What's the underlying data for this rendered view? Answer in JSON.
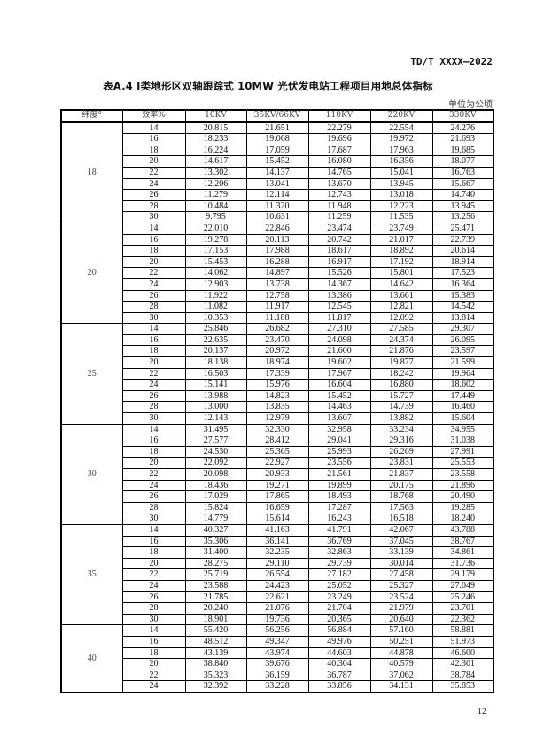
{
  "header": {
    "doc_code": "TD/T XXXX—2022"
  },
  "title": "表A.4  Ⅰ类地形区双轴跟踪式 10MW 光伏发电站工程项目用地总体指标",
  "unit": "单位为公顷",
  "table": {
    "columns": [
      "纬度°",
      "效率%",
      "10KV",
      "35KV/66KV",
      "110KV",
      "220KV",
      "330KV"
    ],
    "groups": [
      {
        "latitude": "18",
        "rows": [
          [
            "14",
            "20.815",
            "21.651",
            "22.279",
            "22.554",
            "24.276"
          ],
          [
            "16",
            "18.233",
            "19.068",
            "19.696",
            "19.972",
            "21.693"
          ],
          [
            "18",
            "16.224",
            "17.059",
            "17.687",
            "17.963",
            "19.685"
          ],
          [
            "20",
            "14.617",
            "15.452",
            "16.080",
            "16.356",
            "18.077"
          ],
          [
            "22",
            "13.302",
            "14.137",
            "14.765",
            "15.041",
            "16.763"
          ],
          [
            "24",
            "12.206",
            "13.041",
            "13.670",
            "13.945",
            "15.667"
          ],
          [
            "26",
            "11.279",
            "12.114",
            "12.743",
            "13.018",
            "14.740"
          ],
          [
            "28",
            "10.484",
            "11.320",
            "11.948",
            "12.223",
            "13.945"
          ],
          [
            "30",
            "9.795",
            "10.631",
            "11.259",
            "11.535",
            "13.256"
          ]
        ]
      },
      {
        "latitude": "20",
        "rows": [
          [
            "14",
            "22.010",
            "22.846",
            "23.474",
            "23.749",
            "25.471"
          ],
          [
            "16",
            "19.278",
            "20.113",
            "20.742",
            "21.017",
            "22.739"
          ],
          [
            "18",
            "17.153",
            "17.988",
            "18.617",
            "18.892",
            "20.614"
          ],
          [
            "20",
            "15.453",
            "16.288",
            "16.917",
            "17.192",
            "18.914"
          ],
          [
            "22",
            "14.062",
            "14.897",
            "15.526",
            "15.801",
            "17.523"
          ],
          [
            "24",
            "12.903",
            "13.738",
            "14.367",
            "14.642",
            "16.364"
          ],
          [
            "26",
            "11.922",
            "12.758",
            "13.386",
            "13.661",
            "15.383"
          ],
          [
            "28",
            "11.082",
            "11.917",
            "12.545",
            "12.821",
            "14.542"
          ],
          [
            "30",
            "10.353",
            "11.188",
            "11.817",
            "12.092",
            "13.814"
          ]
        ]
      },
      {
        "latitude": "25",
        "rows": [
          [
            "14",
            "25.846",
            "26.682",
            "27.310",
            "27.585",
            "29.307"
          ],
          [
            "16",
            "22.635",
            "23.470",
            "24.098",
            "24.374",
            "26.095"
          ],
          [
            "18",
            "20.137",
            "20.972",
            "21.600",
            "21.876",
            "23.597"
          ],
          [
            "20",
            "18.138",
            "18.974",
            "19.602",
            "19.877",
            "21.599"
          ],
          [
            "22",
            "16.503",
            "17.339",
            "17.967",
            "18.242",
            "19.964"
          ],
          [
            "24",
            "15.141",
            "15.976",
            "16.604",
            "16.880",
            "18.602"
          ],
          [
            "26",
            "13.988",
            "14.823",
            "15.452",
            "15.727",
            "17.449"
          ],
          [
            "28",
            "13.000",
            "13.835",
            "14.463",
            "14.739",
            "16.460"
          ],
          [
            "30",
            "12.143",
            "12.979",
            "13.607",
            "13.882",
            "15.604"
          ]
        ]
      },
      {
        "latitude": "30",
        "rows": [
          [
            "14",
            "31.495",
            "32.330",
            "32.958",
            "33.234",
            "34.955"
          ],
          [
            "16",
            "27.577",
            "28.412",
            "29.041",
            "29.316",
            "31.038"
          ],
          [
            "18",
            "24.530",
            "25.365",
            "25.993",
            "26.269",
            "27.991"
          ],
          [
            "20",
            "22.092",
            "22.927",
            "23.556",
            "23.831",
            "25.553"
          ],
          [
            "22",
            "20.098",
            "20.933",
            "21.561",
            "21.837",
            "23.558"
          ],
          [
            "24",
            "18.436",
            "19.271",
            "19.899",
            "20.175",
            "21.896"
          ],
          [
            "26",
            "17.029",
            "17.865",
            "18.493",
            "18.768",
            "20.490"
          ],
          [
            "28",
            "15.824",
            "16.659",
            "17.287",
            "17.563",
            "19.285"
          ],
          [
            "30",
            "14.779",
            "15.614",
            "16.243",
            "16.518",
            "18.240"
          ]
        ]
      },
      {
        "latitude": "35",
        "rows": [
          [
            "14",
            "40.327",
            "41.163",
            "41.791",
            "42.067",
            "43.788"
          ],
          [
            "16",
            "35.306",
            "36.141",
            "36.769",
            "37.045",
            "38.767"
          ],
          [
            "18",
            "31.400",
            "32.235",
            "32.863",
            "33.139",
            "34.861"
          ],
          [
            "20",
            "28.275",
            "29.110",
            "29.739",
            "30.014",
            "31.736"
          ],
          [
            "22",
            "25.719",
            "26.554",
            "27.182",
            "27.458",
            "29.179"
          ],
          [
            "24",
            "23.588",
            "24.423",
            "25.052",
            "25.327",
            "27.049"
          ],
          [
            "26",
            "21.785",
            "22.621",
            "23.249",
            "23.524",
            "25.246"
          ],
          [
            "28",
            "20.240",
            "21.076",
            "21.704",
            "21.979",
            "23.701"
          ],
          [
            "30",
            "18.901",
            "19.736",
            "20.365",
            "20.640",
            "22.362"
          ]
        ]
      },
      {
        "latitude": "40",
        "rows": [
          [
            "14",
            "55.420",
            "56.256",
            "56.884",
            "57.160",
            "58.881"
          ],
          [
            "16",
            "48.512",
            "49.347",
            "49.976",
            "50.251",
            "51.973"
          ],
          [
            "18",
            "43.139",
            "43.974",
            "44.603",
            "44.878",
            "46.600"
          ],
          [
            "20",
            "38.840",
            "39.676",
            "40.304",
            "40.579",
            "42.301"
          ],
          [
            "22",
            "35.323",
            "36.159",
            "36.787",
            "37.062",
            "38.784"
          ],
          [
            "24",
            "32.392",
            "33.228",
            "33.856",
            "34.131",
            "35.853"
          ]
        ]
      }
    ]
  },
  "footer": {
    "page_number": "12"
  }
}
